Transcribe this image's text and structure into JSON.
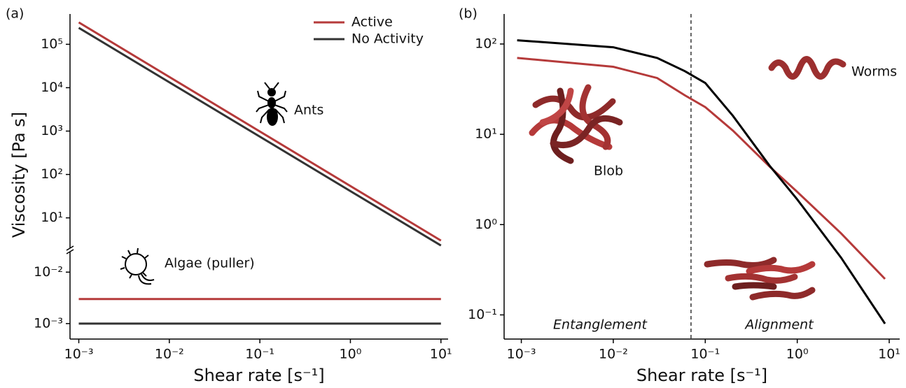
{
  "chart_data": [
    {
      "type": "line",
      "panel_label": "(a)",
      "xlabel": "Shear rate  [s⁻¹]",
      "ylabel": "Viscosity  [Pa s]",
      "xscale": "log",
      "yscale": "log",
      "xlim": [
        0.0008,
        12
      ],
      "ylim": [
        0.0005,
        500000
      ],
      "ybreak": [
        0.025,
        2
      ],
      "xticks": [
        {
          "value": 0.001,
          "label": "10⁻³"
        },
        {
          "value": 0.01,
          "label": "10⁻²"
        },
        {
          "value": 0.1,
          "label": "10⁻¹"
        },
        {
          "value": 1,
          "label": "10⁰"
        },
        {
          "value": 10,
          "label": "10¹"
        }
      ],
      "yticks": [
        {
          "value": 0.001,
          "label": "10⁻³"
        },
        {
          "value": 0.01,
          "label": "10⁻²"
        },
        {
          "value": 10,
          "label": "10¹"
        },
        {
          "value": 100,
          "label": "10²"
        },
        {
          "value": 1000,
          "label": "10³"
        },
        {
          "value": 10000,
          "label": "10⁴"
        },
        {
          "value": 100000,
          "label": "10⁵"
        }
      ],
      "legend": "upper right",
      "series": [
        {
          "name": "Active",
          "color": "#b53a3a",
          "x": [
            0.001,
            10
          ],
          "values": [
            320000,
            3
          ]
        },
        {
          "name": "No Activity",
          "color": "#333333",
          "x": [
            0.001,
            10
          ],
          "values": [
            240000,
            2.3
          ]
        },
        {
          "color": "#b53a3a",
          "x": [
            0.001,
            10
          ],
          "values": [
            0.003,
            0.003
          ]
        },
        {
          "color": "#333333",
          "x": [
            0.001,
            10
          ],
          "values": [
            0.001,
            0.001
          ]
        }
      ],
      "annotations": [
        "Ants",
        "Algae (puller)"
      ]
    },
    {
      "type": "line",
      "panel_label": "(b)",
      "xlabel": "Shear rate  [s⁻¹]",
      "xscale": "log",
      "yscale": "log",
      "xlim": [
        0.00065,
        13
      ],
      "ylim": [
        0.054,
        215
      ],
      "xticks": [
        {
          "value": 0.001,
          "label": "10⁻³"
        },
        {
          "value": 0.01,
          "label": "10⁻²"
        },
        {
          "value": 0.1,
          "label": "10⁻¹"
        },
        {
          "value": 1,
          "label": "10⁰"
        },
        {
          "value": 10,
          "label": "10¹"
        }
      ],
      "yticks": [
        {
          "value": 0.1,
          "label": "10⁻¹"
        },
        {
          "value": 1,
          "label": "10⁰"
        },
        {
          "value": 10,
          "label": "10¹"
        },
        {
          "value": 100,
          "label": "10²"
        }
      ],
      "x": [
        0.0009,
        0.01,
        0.03,
        0.06,
        0.1,
        0.2,
        0.5,
        1,
        3,
        9
      ],
      "series": [
        {
          "name": "Active",
          "color": "#b53a3a",
          "values": [
            70,
            56,
            42,
            27,
            20,
            11,
            4.4,
            2.3,
            0.8,
            0.25
          ]
        },
        {
          "name": "No Activity",
          "color": "#000000",
          "values": [
            110,
            92,
            70,
            50,
            37,
            16,
            4.5,
            1.9,
            0.43,
            0.08
          ]
        }
      ],
      "vline": 0.07,
      "annotations": [
        "Entanglement",
        "Alignment",
        "Blob",
        "Worms"
      ]
    }
  ]
}
